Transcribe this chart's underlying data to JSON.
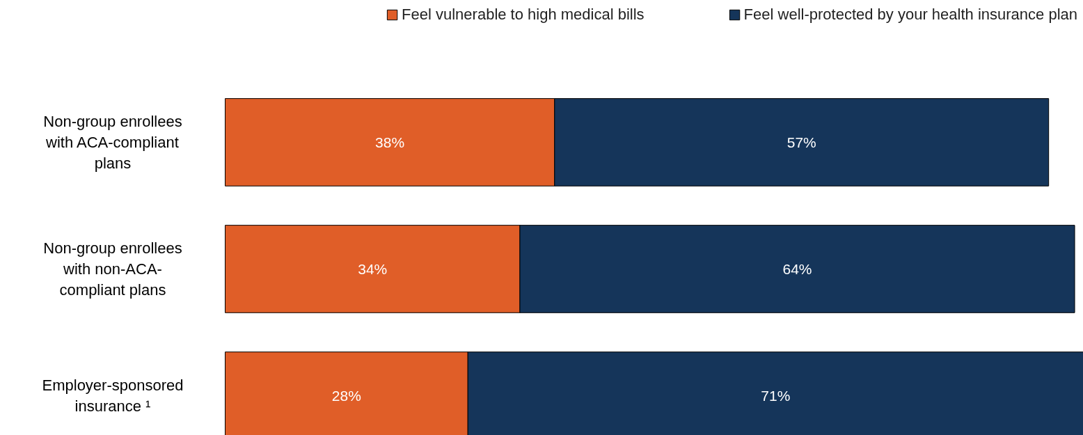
{
  "chart_data": {
    "type": "bar",
    "orientation": "horizontal",
    "stacked": true,
    "legend": "top",
    "categories": [
      "Non-group enrollees with ACA-compliant plans",
      "Non-group enrollees with non-ACA-compliant plans",
      "Employer-sponsored insurance ¹"
    ],
    "series": [
      {
        "name": "Feel vulnerable to high medical bills",
        "color": "#e05e28",
        "values": [
          38,
          34,
          28
        ],
        "value_labels": [
          "38%",
          "34%",
          "28%"
        ]
      },
      {
        "name": "Feel well-protected by your health insurance plan",
        "color": "#15355a",
        "values": [
          57,
          64,
          71
        ],
        "value_labels": [
          "57%",
          "64%",
          "71%"
        ]
      }
    ]
  }
}
